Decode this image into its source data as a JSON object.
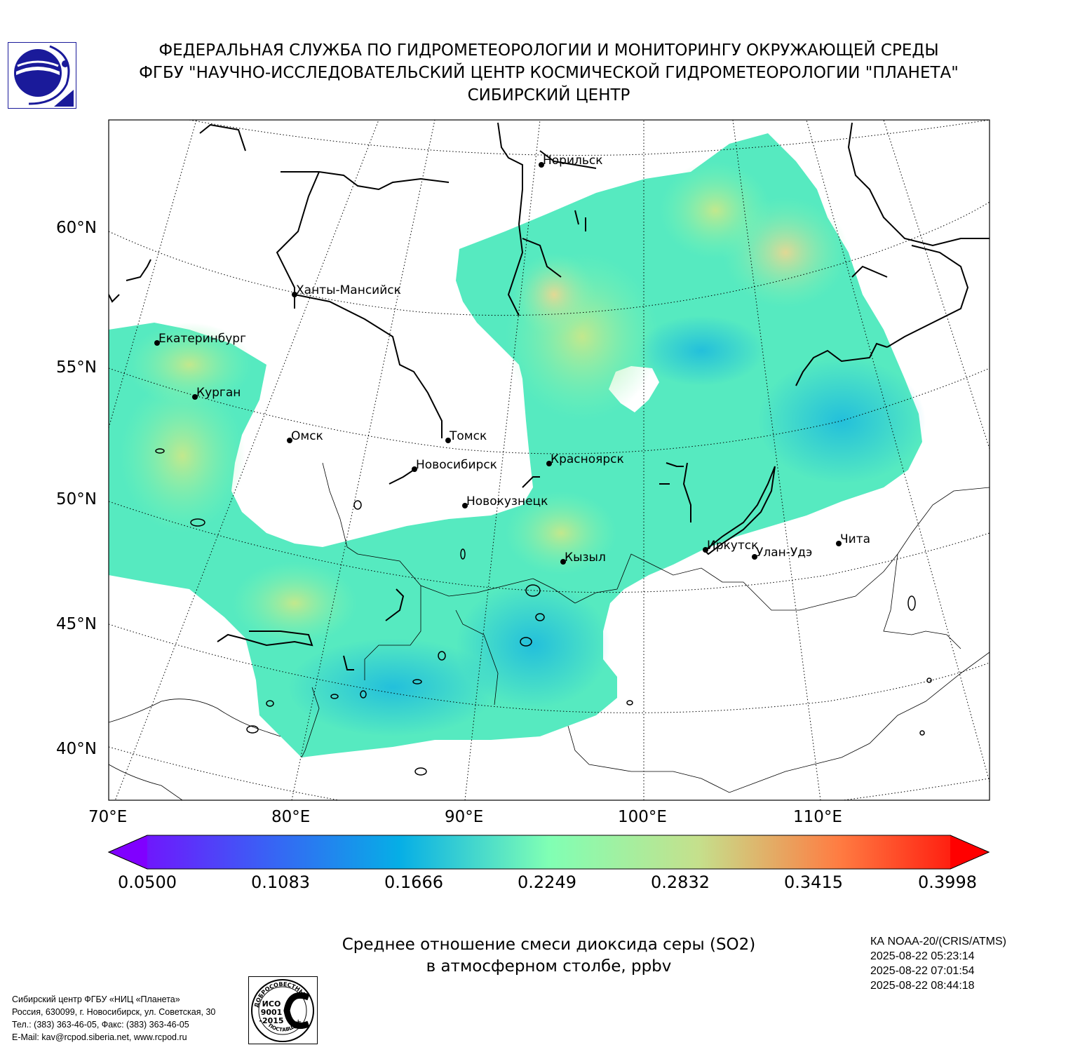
{
  "header": {
    "line1": "ФЕДЕРАЛЬНАЯ СЛУЖБА ПО ГИДРОМЕТЕОРОЛОГИИ И МОНИТОРИНГУ ОКРУЖАЮЩЕЙ СРЕДЫ",
    "line2": "ФГБУ \"НАУЧНО-ИССЛЕДОВАТЕЛЬСКИЙ ЦЕНТР КОСМИЧЕСКОЙ ГИДРОМЕТЕОРОЛОГИИ \"ПЛАНЕТА\"",
    "line3": "СИБИРСКИЙ ЦЕНТР"
  },
  "logo_icon": "planeta-logo-icon",
  "colors": {
    "logo_blue": "#1a1a9a",
    "coast": "#000000",
    "grid": "#000000"
  },
  "axes": {
    "lat_labels": [
      "60°N",
      "55°N",
      "50°N",
      "45°N",
      "40°N"
    ],
    "lon_labels": [
      "70°E",
      "80°E",
      "90°E",
      "100°E",
      "110°E"
    ]
  },
  "cities": [
    {
      "name": "Норильск"
    },
    {
      "name": "Ханты-Мансийск"
    },
    {
      "name": "Екатеринбург"
    },
    {
      "name": "Курган"
    },
    {
      "name": "Омск"
    },
    {
      "name": "Томск"
    },
    {
      "name": "Новосибирск"
    },
    {
      "name": "Красноярск"
    },
    {
      "name": "Новокузнецк"
    },
    {
      "name": "Кызыл"
    },
    {
      "name": "Иркутск"
    },
    {
      "name": "Улан-Удэ"
    },
    {
      "name": "Чита"
    }
  ],
  "colorbar": {
    "min": 0.05,
    "max": 0.3998,
    "ticks": [
      "0.0500",
      "0.1083",
      "0.1666",
      "0.2249",
      "0.2832",
      "0.3415",
      "0.3998"
    ],
    "extend": "both",
    "colormap": "rainbow"
  },
  "caption": {
    "line1": "Среднее отношение смеси диоксида серы (SO2)",
    "line2": "в атмосферном столбе, ppbv"
  },
  "satellite": {
    "name": "КА NOAA-20/(CRIS/ATMS)",
    "times": [
      "2025-08-22 05:23:14",
      "2025-08-22 07:01:54",
      "2025-08-22 08:44:18"
    ]
  },
  "footer": {
    "line1": "Сибирский центр ФГБУ «НИЦ «Планета»",
    "line2": "Россия, 630099, г. Новосибирск, ул. Советская, 30",
    "line3": "Тел.: (383) 363-46-05, Факс: (383) 363-46-05",
    "line4": "E-Mail: kav@rcpod.siberia.net, www.rcpod.ru"
  },
  "iso_badge": {
    "top_text": "ДОБРОСОВЕСТНЫЙ",
    "center_line1": "ИСО",
    "center_line2": "9001",
    "center_line3": "-2015",
    "bottom_text": "ПОСТАВЩИК"
  }
}
